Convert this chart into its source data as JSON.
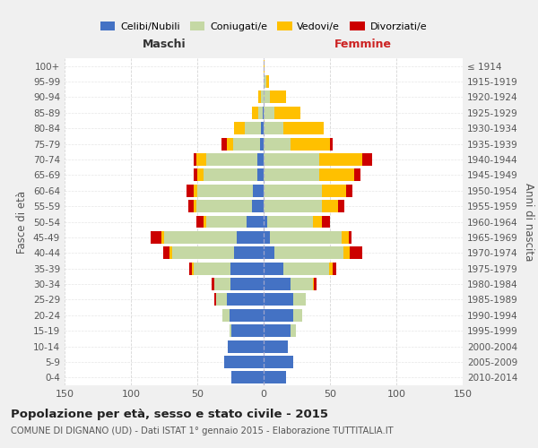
{
  "age_groups": [
    "0-4",
    "5-9",
    "10-14",
    "15-19",
    "20-24",
    "25-29",
    "30-34",
    "35-39",
    "40-44",
    "45-49",
    "50-54",
    "55-59",
    "60-64",
    "65-69",
    "70-74",
    "75-79",
    "80-84",
    "85-89",
    "90-94",
    "95-99",
    "100+"
  ],
  "birth_years": [
    "2010-2014",
    "2005-2009",
    "2000-2004",
    "1995-1999",
    "1990-1994",
    "1985-1989",
    "1980-1984",
    "1975-1979",
    "1970-1974",
    "1965-1969",
    "1960-1964",
    "1955-1959",
    "1950-1954",
    "1945-1949",
    "1940-1944",
    "1935-1939",
    "1930-1934",
    "1925-1929",
    "1920-1924",
    "1915-1919",
    "≤ 1914"
  ],
  "colors": {
    "celibi": "#4472c4",
    "coniugati": "#c5d8a4",
    "vedovi": "#ffc000",
    "divorziati": "#cc0000"
  },
  "maschi": {
    "celibi": [
      24,
      30,
      27,
      24,
      26,
      28,
      25,
      25,
      22,
      20,
      13,
      9,
      8,
      5,
      5,
      3,
      2,
      1,
      0,
      0,
      0
    ],
    "coniugati": [
      0,
      0,
      0,
      2,
      5,
      8,
      12,
      28,
      47,
      55,
      30,
      42,
      42,
      40,
      38,
      20,
      12,
      3,
      2,
      0,
      0
    ],
    "vedovi": [
      0,
      0,
      0,
      0,
      0,
      0,
      0,
      1,
      2,
      2,
      2,
      2,
      3,
      5,
      8,
      5,
      8,
      5,
      2,
      0,
      0
    ],
    "divorziati": [
      0,
      0,
      0,
      0,
      0,
      1,
      2,
      2,
      5,
      8,
      6,
      4,
      5,
      3,
      2,
      4,
      0,
      0,
      0,
      0,
      0
    ]
  },
  "femmine": {
    "celibi": [
      17,
      22,
      18,
      20,
      22,
      22,
      20,
      15,
      8,
      5,
      3,
      0,
      0,
      0,
      0,
      0,
      0,
      0,
      0,
      0,
      0
    ],
    "coniugati": [
      0,
      0,
      0,
      4,
      7,
      10,
      17,
      34,
      52,
      54,
      34,
      44,
      44,
      42,
      42,
      20,
      15,
      8,
      5,
      2,
      0
    ],
    "vedovi": [
      0,
      0,
      0,
      0,
      0,
      0,
      1,
      3,
      5,
      5,
      7,
      12,
      18,
      26,
      32,
      30,
      30,
      20,
      12,
      2,
      1
    ],
    "divorziati": [
      0,
      0,
      0,
      0,
      0,
      0,
      2,
      3,
      9,
      2,
      6,
      5,
      5,
      5,
      8,
      2,
      0,
      0,
      0,
      0,
      0
    ]
  },
  "xlim": 150,
  "title": "Popolazione per età, sesso e stato civile - 2015",
  "subtitle": "COMUNE DI DIGNANO (UD) - Dati ISTAT 1° gennaio 2015 - Elaborazione TUTTITALIA.IT",
  "ylabel_left": "Fasce di età",
  "ylabel_right": "Anni di nascita",
  "xlabel_left": "Maschi",
  "xlabel_right": "Femmine",
  "bg_color": "#f0f0f0",
  "plot_bg": "#ffffff"
}
